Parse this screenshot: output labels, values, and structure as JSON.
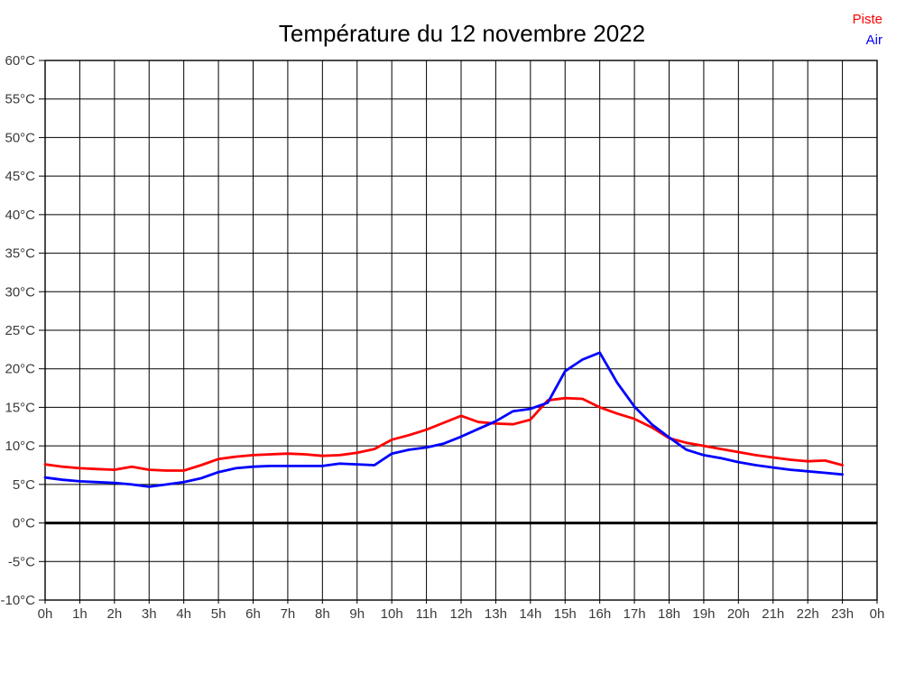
{
  "title": "Température du 12 novembre 2022",
  "legend": [
    {
      "label": "Piste",
      "color": "#ff0000"
    },
    {
      "label": "Air",
      "color": "#0000ff"
    }
  ],
  "colors": {
    "background": "#ffffff",
    "grid": "#000000",
    "frame": "#000000",
    "zero_line": "#000000",
    "tick_label": "#3a3a3a",
    "title": "#000000"
  },
  "chart_data": {
    "type": "line",
    "title": "Température du 12 novembre 2022",
    "xlabel": "",
    "ylabel": "",
    "xlim": [
      0,
      24
    ],
    "ylim": [
      -10,
      60
    ],
    "grid": true,
    "zero_line": 0,
    "legend_position": "top-right",
    "x_ticks": [
      0,
      1,
      2,
      3,
      4,
      5,
      6,
      7,
      8,
      9,
      10,
      11,
      12,
      13,
      14,
      15,
      16,
      17,
      18,
      19,
      20,
      21,
      22,
      23,
      24
    ],
    "x_tick_labels": [
      "0h",
      "1h",
      "2h",
      "3h",
      "4h",
      "5h",
      "6h",
      "7h",
      "8h",
      "9h",
      "10h",
      "11h",
      "12h",
      "13h",
      "14h",
      "15h",
      "16h",
      "17h",
      "18h",
      "19h",
      "20h",
      "21h",
      "22h",
      "23h",
      "0h"
    ],
    "y_ticks": [
      60,
      55,
      50,
      45,
      40,
      35,
      30,
      25,
      20,
      15,
      10,
      5,
      0,
      -5,
      -10
    ],
    "y_tick_labels": [
      "60°C",
      "55°C",
      "50°C",
      "45°C",
      "40°C",
      "35°C",
      "30°C",
      "25°C",
      "20°C",
      "15°C",
      "10°C",
      "5°C",
      "0°C",
      "-5°C",
      "-10°C"
    ],
    "series": [
      {
        "name": "Piste",
        "color": "#ff0000",
        "x": [
          0,
          0.5,
          1,
          1.5,
          2,
          2.5,
          3,
          3.5,
          4,
          4.5,
          5,
          5.5,
          6,
          6.5,
          7,
          7.5,
          8,
          8.5,
          9,
          9.5,
          10,
          10.5,
          11,
          11.5,
          12,
          12.5,
          13,
          13.5,
          14,
          14.5,
          15,
          15.5,
          16,
          16.5,
          17,
          17.5,
          18,
          18.5,
          19,
          19.5,
          20,
          20.5,
          21,
          21.5,
          22,
          22.5,
          23
        ],
        "values": [
          7.6,
          7.3,
          7.1,
          7.0,
          6.9,
          7.3,
          6.9,
          6.8,
          6.8,
          7.5,
          8.3,
          8.6,
          8.8,
          8.9,
          9.0,
          8.9,
          8.7,
          8.8,
          9.1,
          9.6,
          10.8,
          11.4,
          12.1,
          13.0,
          13.9,
          13.1,
          12.9,
          12.8,
          13.4,
          15.9,
          16.2,
          16.1,
          15.0,
          14.2,
          13.5,
          12.4,
          11.0,
          10.4,
          10.0,
          9.6,
          9.2,
          8.8,
          8.5,
          8.2,
          8.0,
          8.1,
          7.5
        ]
      },
      {
        "name": "Air",
        "color": "#0000ff",
        "x": [
          0,
          0.5,
          1,
          1.5,
          2,
          2.5,
          3,
          3.5,
          4,
          4.5,
          5,
          5.5,
          6,
          6.5,
          7,
          7.5,
          8,
          8.5,
          9,
          9.5,
          10,
          10.5,
          11,
          11.5,
          12,
          12.5,
          13,
          13.5,
          14,
          14.5,
          15,
          15.5,
          16,
          16.5,
          17,
          17.5,
          18,
          18.5,
          19,
          19.5,
          20,
          20.5,
          21,
          21.5,
          22,
          22.5,
          23
        ],
        "values": [
          5.9,
          5.6,
          5.4,
          5.3,
          5.2,
          5.0,
          4.7,
          5.0,
          5.3,
          5.8,
          6.6,
          7.1,
          7.3,
          7.4,
          7.4,
          7.4,
          7.4,
          7.7,
          7.6,
          7.5,
          9.0,
          9.5,
          9.8,
          10.3,
          11.2,
          12.2,
          13.2,
          14.5,
          14.8,
          15.6,
          19.7,
          21.2,
          22.1,
          18.2,
          15.1,
          12.8,
          11.1,
          9.5,
          8.8,
          8.4,
          7.9,
          7.5,
          7.2,
          6.9,
          6.7,
          6.5,
          6.3
        ]
      }
    ]
  }
}
